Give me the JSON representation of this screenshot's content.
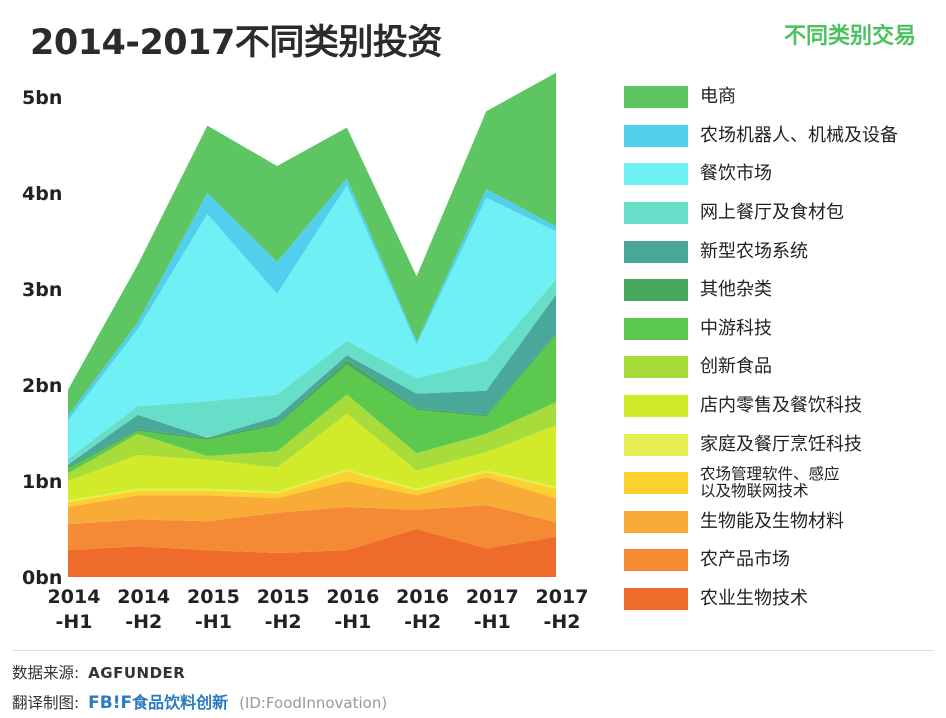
{
  "header": {
    "title": "2014-2017不同类别投资",
    "subtitle": "不同类别交易"
  },
  "chart_data": {
    "type": "area",
    "stacked": true,
    "title": "2014-2017不同类别投资",
    "x_ticks": [
      {
        "line1": "2014",
        "line2": "-H1"
      },
      {
        "line1": "2014",
        "line2": "-H2"
      },
      {
        "line1": "2015",
        "line2": "-H1"
      },
      {
        "line1": "2015",
        "line2": "-H2"
      },
      {
        "line1": "2016",
        "line2": "-H1"
      },
      {
        "line1": "2016",
        "line2": "-H2"
      },
      {
        "line1": "2017",
        "line2": "-H1"
      },
      {
        "line1": "2017",
        "line2": "-H2"
      }
    ],
    "y_ticks": [
      "0bn",
      "1bn",
      "2bn",
      "3bn",
      "4bn",
      "5bn"
    ],
    "ylim": [
      0,
      5.3
    ],
    "series": [
      {
        "name": "农业生物技术",
        "color": "#ef6b2b",
        "values": [
          0.28,
          0.32,
          0.28,
          0.25,
          0.28,
          0.5,
          0.3,
          0.42
        ]
      },
      {
        "name": "农产品市场",
        "color": "#f48a33",
        "values": [
          0.27,
          0.28,
          0.3,
          0.42,
          0.45,
          0.2,
          0.45,
          0.15
        ]
      },
      {
        "name": "生物能及生物材料",
        "color": "#f8ab36",
        "values": [
          0.18,
          0.25,
          0.27,
          0.15,
          0.27,
          0.15,
          0.29,
          0.25
        ]
      },
      {
        "name": "农场管理软件、感应\n以及物联网技术",
        "color": "#fcd02e",
        "values": [
          0.05,
          0.05,
          0.05,
          0.05,
          0.1,
          0.05,
          0.05,
          0.1
        ]
      },
      {
        "name": "家庭及餐厅烹饪科技",
        "color": "#e4ee50",
        "values": [
          0.02,
          0.02,
          0.02,
          0.02,
          0.02,
          0.02,
          0.02,
          0.02
        ]
      },
      {
        "name": "店内零售及餐饮科技",
        "color": "#d1ea2a",
        "values": [
          0.2,
          0.35,
          0.3,
          0.25,
          0.58,
          0.19,
          0.19,
          0.64
        ]
      },
      {
        "name": "创新食品",
        "color": "#a7dc3a",
        "values": [
          0.08,
          0.22,
          0.04,
          0.17,
          0.2,
          0.18,
          0.19,
          0.24
        ]
      },
      {
        "name": "中游科技",
        "color": "#5cc84e",
        "values": [
          0.05,
          0.03,
          0.17,
          0.27,
          0.31,
          0.45,
          0.18,
          0.7
        ]
      },
      {
        "name": "其他杂类",
        "color": "#48a860",
        "values": [
          0.02,
          0.02,
          0.02,
          0.02,
          0.05,
          0.02,
          0.02,
          0.02
        ]
      },
      {
        "name": "新型农场系统",
        "color": "#4aa89a",
        "values": [
          0.02,
          0.15,
          0.0,
          0.07,
          0.05,
          0.15,
          0.25,
          0.4
        ]
      },
      {
        "name": "网上餐厅及食材包",
        "color": "#67dec8",
        "values": [
          0.06,
          0.09,
          0.38,
          0.23,
          0.15,
          0.16,
          0.31,
          0.16
        ]
      },
      {
        "name": "餐饮市场",
        "color": "#6ff0f4",
        "values": [
          0.4,
          0.8,
          1.95,
          1.05,
          1.62,
          0.35,
          1.7,
          0.5
        ]
      },
      {
        "name": "农场机器人、机械及设备",
        "color": "#52cfec",
        "values": [
          0.05,
          0.07,
          0.22,
          0.33,
          0.07,
          0.03,
          0.09,
          0.05
        ]
      },
      {
        "name": "电商",
        "color": "#5dc663",
        "values": [
          0.27,
          0.6,
          0.7,
          1.0,
          0.53,
          0.68,
          0.81,
          1.6
        ]
      }
    ]
  },
  "footer": {
    "source_label": "数据来源:",
    "source_name": "AGFUNDER",
    "translator_label": "翻译制图:",
    "translator_logo": "FB!F",
    "translator_name": "食品饮料创新",
    "translator_id": "(ID:FoodInnovation)"
  }
}
